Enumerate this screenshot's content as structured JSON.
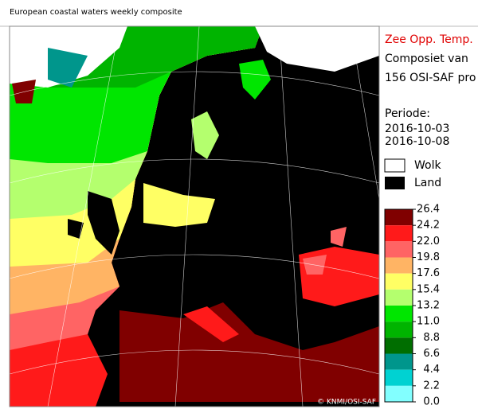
{
  "title": "European coastal waters weekly composite",
  "legend": {
    "quantity": "Zee Opp. Temp.",
    "lines": [
      "Composiet van",
      "156 OSI-SAF pro"
    ],
    "period_label": "Periode:",
    "period": [
      "2016-10-03",
      "2016-10-08"
    ],
    "cloud": "Wolk",
    "land": "Land"
  },
  "scale": {
    "ticks": [
      26.4,
      24.2,
      {
        "value": 22,
        "label": "22.0"
      },
      19.8,
      17.6,
      15.4,
      13.2,
      {
        "value": 11,
        "label": "11.0"
      },
      8.8,
      6.6,
      4.4,
      2.2,
      {
        "value": 0,
        "label": "0.0"
      }
    ],
    "colors": [
      "#800000",
      "#ff1a1a",
      "#ff6464",
      "#ffb464",
      "#ffff64",
      "#b4ff6e",
      "#00e600",
      "#00b400",
      "#006e00",
      "#00968c",
      "#00d2d2",
      "#82ffff"
    ]
  },
  "credit": "© KNMI/OSI-SAF"
}
